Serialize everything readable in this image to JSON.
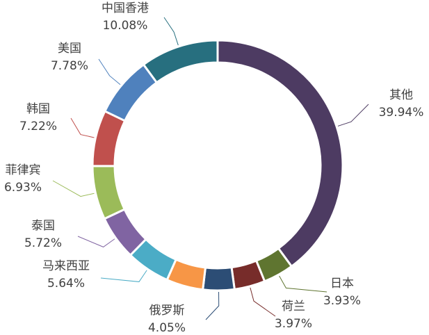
{
  "chart_data": {
    "type": "donut",
    "categories": [
      "其他",
      "日本",
      "荷兰",
      "俄罗斯",
      null,
      "马来西亚",
      "泰国",
      "菲律宾",
      "韩国",
      "美国",
      "中国香港"
    ],
    "values": [
      39.94,
      3.93,
      3.97,
      4.05,
      4.74,
      5.64,
      5.72,
      6.93,
      7.22,
      7.78,
      10.08
    ],
    "value_labels": [
      "39.94%",
      "3.93%",
      "3.97%",
      "4.05%",
      null,
      "5.64%",
      "5.72%",
      "6.93%",
      "7.22%",
      "7.78%",
      "10.08%"
    ],
    "colors": [
      "#4d3b62",
      "#5f7530",
      "#772c2a",
      "#2c4d75",
      "#f79646",
      "#4bacc6",
      "#8064a2",
      "#9bbb59",
      "#c0504d",
      "#4f81bd",
      "#276f7f"
    ]
  }
}
